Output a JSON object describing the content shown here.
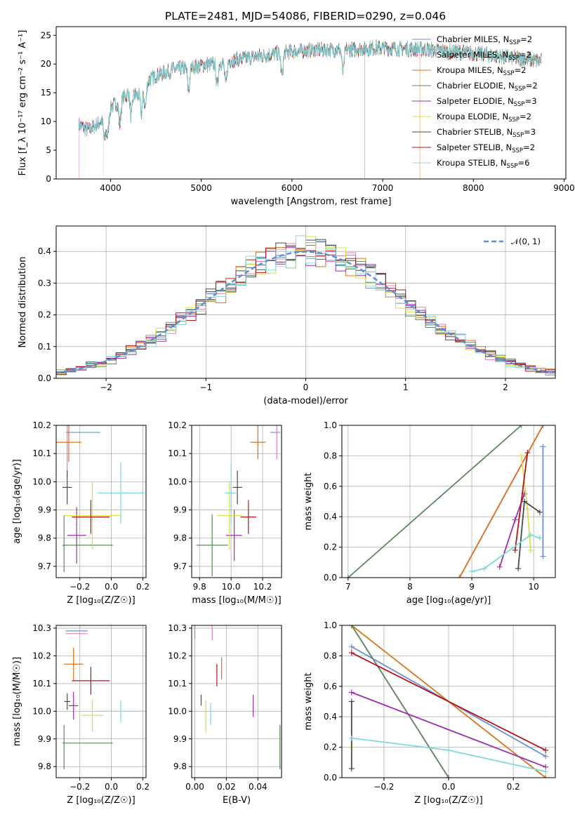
{
  "figure": {
    "title": "PLATE=2481, MJD=54086, FIBERID=0290, z=0.046"
  },
  "colors": {
    "Chabrier MILES": "#6f8fd6",
    "Salpeter MILES": "#e07bbf",
    "Kroupa MILES": "#d9721c",
    "Chabrier ELODIE": "#5c8a5c",
    "Salpeter ELODIE": "#9b2fae",
    "Kroupa ELODIE": "#d8e04a",
    "Chabrier STELIB": "#4a4a4a",
    "Salpeter STELIB": "#b3141a",
    "Kroupa STELIB": "#7fd8d8",
    "gaussian": "#5b8fd8",
    "grid": "#b0b0b0"
  },
  "chart_data": [
    {
      "id": "spectrum",
      "type": "line",
      "xlabel": "wavelength [Angstrom, rest frame]",
      "ylabel": "Flux [f_λ 10⁻¹⁷ erg cm⁻² s⁻¹ A⁻¹]",
      "xlim": [
        3400,
        9020
      ],
      "ylim": [
        0,
        26.5
      ],
      "xticks": [
        4000,
        5000,
        6000,
        7000,
        8000,
        9000
      ],
      "yticks": [
        0,
        5,
        10,
        15,
        20,
        25
      ],
      "grid": false,
      "legend": "upper right",
      "continuum": {
        "x": [
          3650,
          3750,
          3850,
          3950,
          4000,
          4100,
          4200,
          4300,
          4400,
          4500,
          4700,
          4900,
          5100,
          5300,
          5500,
          5700,
          5900,
          6100,
          6300,
          6500,
          6700,
          6900,
          7100,
          7300,
          7500,
          7700,
          7900,
          8100,
          8300,
          8500,
          8750
        ],
        "y": [
          9.5,
          8.5,
          9.5,
          11.0,
          12.5,
          13.5,
          15.0,
          14.5,
          17.0,
          18.0,
          19.0,
          19.5,
          20.0,
          20.5,
          21.0,
          21.5,
          22.0,
          22.3,
          22.5,
          22.5,
          22.6,
          22.8,
          22.7,
          22.6,
          22.5,
          22.2,
          22.0,
          21.7,
          21.3,
          21.0,
          20.5
        ]
      },
      "series": [
        {
          "name": "Chabrier MILES, N_SSP=2"
        },
        {
          "name": "Salpeter MILES, N_SSP=2",
          "start": 3650
        },
        {
          "name": "Kroupa MILES, N_SSP=2",
          "start": 7410
        },
        {
          "name": "Chabrier ELODIE, N_SSP=2",
          "start": 6800
        },
        {
          "name": "Salpeter ELODIE, N_SSP=3"
        },
        {
          "name": "Kroupa ELODIE, N_SSP=2",
          "start": 3920
        },
        {
          "name": "Chabrier STELIB, N_SSP=3"
        },
        {
          "name": "Salpeter STELIB, N_SSP=2"
        },
        {
          "name": "Kroupa STELIB, N_SSP=6"
        }
      ]
    },
    {
      "id": "residuals",
      "type": "line",
      "xlabel": "(data-model)/error",
      "ylabel": "Normed distribution",
      "xlim": [
        -2.5,
        2.5
      ],
      "ylim": [
        0,
        0.48
      ],
      "xticks": [
        -2,
        -1,
        0,
        1,
        2
      ],
      "yticks": [
        0.0,
        0.1,
        0.2,
        0.3,
        0.4
      ],
      "grid": true,
      "legend": "upper right",
      "gaussian_label": "𝒩(0, 1)",
      "bin_width": 0.1
    },
    {
      "id": "age_vs_Z",
      "type": "scatter",
      "xlabel": "Z [log₁₀(Z/Z☉)]",
      "ylabel": "age  [log₁₀(age/yr)]",
      "xlim": [
        -0.35,
        0.22
      ],
      "ylim": [
        9.66,
        10.2
      ],
      "xticks": [
        -0.2,
        0.0,
        0.2
      ],
      "yticks": [
        9.7,
        9.8,
        9.9,
        10.0,
        10.1,
        10.2
      ],
      "grid": true,
      "points": [
        {
          "model": "Chabrier MILES",
          "x": -0.18,
          "y": 10.175,
          "xerr": 0.11,
          "yerr": 0.0
        },
        {
          "model": "Salpeter MILES",
          "x": -0.28,
          "y": 10.14,
          "xerr": 0.02,
          "yerr": 0.12
        },
        {
          "model": "Kroupa MILES",
          "x": -0.27,
          "y": 10.14,
          "xerr": 0.08,
          "yerr": 0.07
        },
        {
          "model": "Chabrier ELODIE",
          "x": -0.15,
          "y": 9.775,
          "xerr": 0.16,
          "yerr": 0.0
        },
        {
          "model": "Salpeter ELODIE",
          "x": -0.22,
          "y": 9.81,
          "xerr": 0.06,
          "yerr": 0.1
        },
        {
          "model": "Kroupa ELODIE",
          "x": -0.12,
          "y": 9.88,
          "xerr": 0.18,
          "yerr": 0.12
        },
        {
          "model": "Chabrier STELIB",
          "x": -0.28,
          "y": 9.98,
          "xerr": 0.03,
          "yerr": 0.06
        },
        {
          "model": "Salpeter STELIB",
          "x": -0.13,
          "y": 9.875,
          "xerr": 0.12,
          "yerr": 0.06
        },
        {
          "model": "Kroupa STELIB",
          "x": 0.06,
          "y": 9.96,
          "xerr": 0.15,
          "yerr": 0.11
        },
        {
          "model": "Chabrier ELODIE",
          "x": -0.3,
          "y": 9.78,
          "xerr": 0.0,
          "yerr": 0.1
        }
      ]
    },
    {
      "id": "age_vs_mass",
      "type": "scatter",
      "xlabel": "mass [log₁₀(M/M☉)]",
      "ylabel": "",
      "xlim": [
        9.75,
        10.32
      ],
      "ylim": [
        9.66,
        10.2
      ],
      "xticks": [
        9.8,
        10.0,
        10.2
      ],
      "yticks": [
        9.7,
        9.8,
        9.9,
        10.0,
        10.1,
        10.2
      ],
      "grid": true,
      "points": [
        {
          "model": "Chabrier MILES",
          "x": 10.28,
          "y": 10.175,
          "xerr": 0.03,
          "yerr": 0.0
        },
        {
          "model": "Salpeter MILES",
          "x": 10.29,
          "y": 10.14,
          "xerr": 0.0,
          "yerr": 0.06
        },
        {
          "model": "Kroupa MILES",
          "x": 10.17,
          "y": 10.14,
          "xerr": 0.05,
          "yerr": 0.06
        },
        {
          "model": "Chabrier ELODIE",
          "x": 9.88,
          "y": 9.775,
          "xerr": 0.1,
          "yerr": 0.11
        },
        {
          "model": "Salpeter ELODIE",
          "x": 10.02,
          "y": 9.81,
          "xerr": 0.05,
          "yerr": 0.09
        },
        {
          "model": "Kroupa ELODIE",
          "x": 9.99,
          "y": 9.88,
          "xerr": 0.08,
          "yerr": 0.12
        },
        {
          "model": "Chabrier STELIB",
          "x": 10.04,
          "y": 9.98,
          "xerr": 0.03,
          "yerr": 0.06
        },
        {
          "model": "Salpeter STELIB",
          "x": 10.11,
          "y": 9.875,
          "xerr": 0.05,
          "yerr": 0.06
        },
        {
          "model": "Kroupa STELIB",
          "x": 10.0,
          "y": 9.96,
          "xerr": 0.04,
          "yerr": 0.11
        }
      ]
    },
    {
      "id": "mass_weight_vs_age",
      "type": "line",
      "xlabel": "age  [log₁₀(age/yr)]",
      "ylabel": "mass weight",
      "xlim": [
        6.9,
        10.35
      ],
      "ylim": [
        0,
        1.0
      ],
      "xticks": [
        7,
        8,
        9,
        10
      ],
      "yticks": [
        0.0,
        0.2,
        0.4,
        0.6,
        0.8,
        1.0
      ],
      "grid": true,
      "series": [
        {
          "model": "Chabrier MILES",
          "x": [
            10.15,
            10.15
          ],
          "y": [
            0.14,
            0.86
          ]
        },
        {
          "model": "Salpeter MILES",
          "x": [
            8.8,
            10.15
          ],
          "y": [
            0.0,
            1.0
          ]
        },
        {
          "model": "Kroupa MILES",
          "x": [
            8.8,
            10.15
          ],
          "y": [
            0.0,
            1.0
          ]
        },
        {
          "model": "Chabrier ELODIE",
          "x": [
            7.0,
            9.8
          ],
          "y": [
            0.0,
            1.0
          ]
        },
        {
          "model": "Salpeter ELODIE",
          "x": [
            9.45,
            9.7,
            9.85
          ],
          "y": [
            0.07,
            0.38,
            0.55
          ]
        },
        {
          "model": "Kroupa ELODIE",
          "x": [
            9.8,
            9.9,
            9.95
          ],
          "y": [
            0.8,
            0.45,
            0.18
          ]
        },
        {
          "model": "Chabrier STELIB",
          "x": [
            9.75,
            9.85,
            10.1
          ],
          "y": [
            0.06,
            0.5,
            0.43
          ]
        },
        {
          "model": "Salpeter STELIB",
          "x": [
            9.7,
            9.9
          ],
          "y": [
            0.18,
            0.82
          ]
        },
        {
          "model": "Kroupa STELIB",
          "x": [
            9.0,
            9.2,
            9.95,
            10.1
          ],
          "y": [
            0.04,
            0.06,
            0.28,
            0.26
          ]
        }
      ]
    },
    {
      "id": "mass_vs_Z",
      "type": "scatter",
      "xlabel": "Z [log₁₀(Z/Z☉)]",
      "ylabel": "mass [log₁₀(M/M☉)]",
      "xlim": [
        -0.35,
        0.22
      ],
      "ylim": [
        9.76,
        10.31
      ],
      "xticks": [
        -0.2,
        0.0,
        0.2
      ],
      "yticks": [
        9.8,
        9.9,
        10.0,
        10.1,
        10.2,
        10.3
      ],
      "grid": true,
      "points": [
        {
          "model": "Chabrier MILES",
          "x": -0.22,
          "y": 10.29,
          "xerr": 0.07,
          "yerr": 0.0
        },
        {
          "model": "Salpeter MILES",
          "x": -0.22,
          "y": 10.28,
          "xerr": 0.07,
          "yerr": 0.0
        },
        {
          "model": "Kroupa MILES",
          "x": -0.24,
          "y": 10.17,
          "xerr": 0.06,
          "yerr": 0.06
        },
        {
          "model": "Chabrier ELODIE",
          "x": -0.15,
          "y": 9.885,
          "xerr": 0.16,
          "yerr": 0.0
        },
        {
          "model": "Salpeter ELODIE",
          "x": -0.24,
          "y": 10.02,
          "xerr": 0.03,
          "yerr": 0.05
        },
        {
          "model": "Kroupa ELODIE",
          "x": -0.12,
          "y": 9.985,
          "xerr": 0.07,
          "yerr": 0.06
        },
        {
          "model": "Chabrier STELIB",
          "x": -0.28,
          "y": 10.035,
          "xerr": 0.02,
          "yerr": 0.03
        },
        {
          "model": "Salpeter STELIB",
          "x": -0.13,
          "y": 10.11,
          "xerr": 0.12,
          "yerr": 0.05
        },
        {
          "model": "Kroupa STELIB",
          "x": 0.06,
          "y": 10.0,
          "xerr": 0.15,
          "yerr": 0.04
        },
        {
          "model": "Chabrier ELODIE",
          "x": -0.3,
          "y": 9.87,
          "xerr": 0.0,
          "yerr": 0.08
        }
      ]
    },
    {
      "id": "mass_vs_ebv",
      "type": "scatter",
      "xlabel": "E(B-V)",
      "ylabel": "",
      "xlim": [
        -0.002,
        0.055
      ],
      "ylim": [
        9.76,
        10.31
      ],
      "xticks": [
        0.0,
        0.02,
        0.04
      ],
      "yticks": [
        9.8,
        9.9,
        10.0,
        10.1,
        10.2,
        10.3
      ],
      "grid": true,
      "points": [
        {
          "model": "Chabrier MILES",
          "x": 0.0,
          "y": 10.29,
          "xerr": 0.0,
          "yerr": 0.03
        },
        {
          "model": "Salpeter MILES",
          "x": 0.011,
          "y": 10.285,
          "xerr": 0.0,
          "yerr": 0.03
        },
        {
          "model": "Kroupa MILES",
          "x": 0.017,
          "y": 10.155,
          "xerr": 0.0,
          "yerr": 0.04
        },
        {
          "model": "Chabrier ELODIE",
          "x": 0.054,
          "y": 9.87,
          "xerr": 0.0,
          "yerr": 0.08
        },
        {
          "model": "Salpeter ELODIE",
          "x": 0.037,
          "y": 10.02,
          "xerr": 0.0,
          "yerr": 0.04
        },
        {
          "model": "Kroupa ELODIE",
          "x": 0.007,
          "y": 9.98,
          "xerr": 0.0,
          "yerr": 0.06
        },
        {
          "model": "Chabrier STELIB",
          "x": 0.004,
          "y": 10.04,
          "xerr": 0.0,
          "yerr": 0.02
        },
        {
          "model": "Salpeter STELIB",
          "x": 0.014,
          "y": 10.13,
          "xerr": 0.0,
          "yerr": 0.04
        },
        {
          "model": "Kroupa STELIB",
          "x": 0.01,
          "y": 9.99,
          "xerr": 0.0,
          "yerr": 0.04
        }
      ]
    },
    {
      "id": "mass_weight_vs_Z",
      "type": "line",
      "xlabel": "Z [log₁₀(Z/Z☉)]",
      "ylabel": "mass weight",
      "xlim": [
        -0.33,
        0.33
      ],
      "ylim": [
        0,
        1.0
      ],
      "xticks": [
        -0.2,
        0.0,
        0.2
      ],
      "yticks": [
        0.0,
        0.2,
        0.4,
        0.6,
        0.8,
        1.0
      ],
      "grid": true,
      "series": [
        {
          "model": "Chabrier MILES",
          "x": [
            -0.3,
            0.3
          ],
          "y": [
            0.86,
            0.14
          ]
        },
        {
          "model": "Salpeter MILES",
          "x": [
            -0.3,
            0.0
          ],
          "y": [
            1.0,
            0.0
          ]
        },
        {
          "model": "Kroupa MILES",
          "x": [
            -0.3,
            0.3
          ],
          "y": [
            1.0,
            0.0
          ]
        },
        {
          "model": "Chabrier ELODIE",
          "x": [
            -0.3,
            0.0
          ],
          "y": [
            1.0,
            0.0
          ]
        },
        {
          "model": "Salpeter ELODIE",
          "x": [
            -0.3,
            0.3
          ],
          "y": [
            0.56,
            0.07
          ]
        },
        {
          "model": "Kroupa ELODIE",
          "x": [
            -0.3,
            -0.3
          ],
          "y": [
            0.2,
            0.5
          ]
        },
        {
          "model": "Chabrier STELIB",
          "x": [
            -0.3,
            -0.3
          ],
          "y": [
            0.06,
            0.5
          ]
        },
        {
          "model": "Salpeter STELIB",
          "x": [
            -0.3,
            0.3
          ],
          "y": [
            0.82,
            0.18
          ]
        },
        {
          "model": "Kroupa STELIB",
          "x": [
            -0.3,
            0.0,
            0.3
          ],
          "y": [
            0.26,
            0.18,
            0.04
          ]
        }
      ]
    }
  ]
}
